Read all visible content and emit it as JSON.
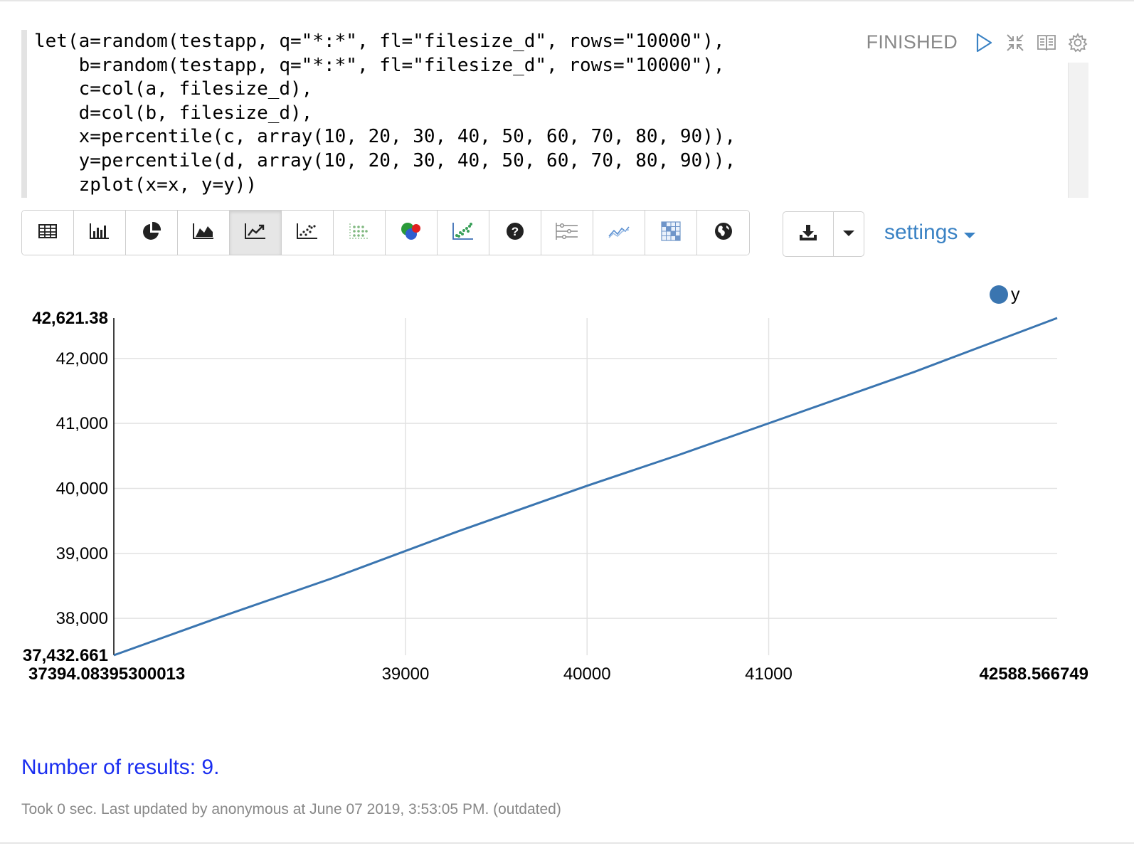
{
  "paragraph": {
    "code_lines": [
      "let(a=random(testapp, q=\"*:*\", fl=\"filesize_d\", rows=\"10000\"),",
      "    b=random(testapp, q=\"*:*\", fl=\"filesize_d\", rows=\"10000\"),",
      "    c=col(a, filesize_d),",
      "    d=col(b, filesize_d),",
      "    x=percentile(c, array(10, 20, 30, 40, 50, 60, 70, 80, 90)),",
      "    y=percentile(d, array(10, 20, 30, 40, 50, 60, 70, 80, 90)),",
      "    zplot(x=x, y=y))"
    ],
    "status": "FINISHED",
    "controls": [
      "run-icon",
      "collapse-icon",
      "book-icon",
      "gear-icon"
    ]
  },
  "toolbar": {
    "buttons": [
      {
        "name": "table-icon",
        "active": false
      },
      {
        "name": "bar-chart-icon",
        "active": false
      },
      {
        "name": "pie-chart-icon",
        "active": false
      },
      {
        "name": "area-chart-icon",
        "active": false
      },
      {
        "name": "line-chart-icon",
        "active": true
      },
      {
        "name": "scatter-chart-icon",
        "active": false
      },
      {
        "name": "dot-grid-icon",
        "active": false
      },
      {
        "name": "bubble-icon",
        "active": false
      },
      {
        "name": "scatter-color-icon",
        "active": false
      },
      {
        "name": "help-icon",
        "active": false
      },
      {
        "name": "sliders-icon",
        "active": false
      },
      {
        "name": "line-trend-icon",
        "active": false
      },
      {
        "name": "heatmap-icon",
        "active": false
      },
      {
        "name": "globe-icon",
        "active": false
      }
    ],
    "download_icon": "download-icon",
    "caret_icon": "caret-down-icon",
    "settings_label": "settings"
  },
  "chart_data": {
    "type": "line",
    "legend": [
      "y"
    ],
    "legend_position": "top-right",
    "series_color": "#3a75b0",
    "grid": true,
    "xlim": [
      37394.08395300013,
      42588.566749
    ],
    "ylim": [
      37432.661,
      42621.38
    ],
    "x_tick_labels": [
      "37394.08395300013",
      "39000",
      "40000",
      "41000",
      "42588.566749"
    ],
    "y_tick_labels": [
      "42,621.38",
      "42,000",
      "41,000",
      "40,000",
      "39,000",
      "38,000",
      "37,432.661"
    ],
    "series": [
      {
        "name": "y",
        "x": [
          37394.08,
          37980,
          38600,
          39290,
          40000,
          40510,
          41100,
          41800,
          42588.57
        ],
        "y": [
          37432.66,
          38020,
          38620,
          39340,
          40040,
          40520,
          41100,
          41790,
          42621.38
        ]
      }
    ]
  },
  "results_text": "Number of results: 9.",
  "footer_text": "Took 0 sec. Last updated by anonymous at June 07 2019, 3:53:05 PM. (outdated)"
}
